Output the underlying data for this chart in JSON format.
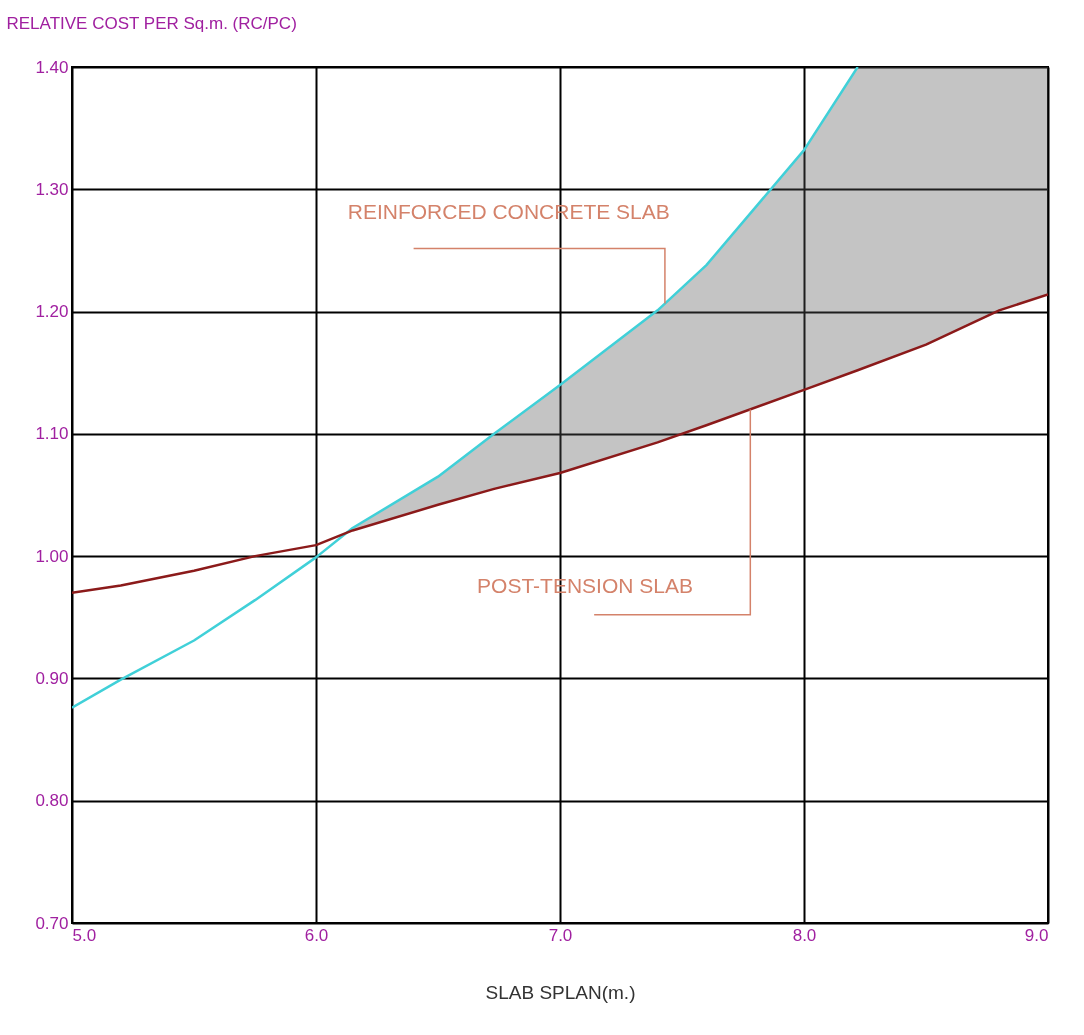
{
  "chart_data": {
    "type": "line",
    "xlabel": "SLAB SPLAN(m.)",
    "ylabel": "RELATIVE COST PER Sq.m. (RC/PC)",
    "x": [
      5.0,
      5.2,
      5.5,
      5.75,
      6.0,
      6.15,
      6.5,
      6.73,
      7.0,
      7.4,
      7.6,
      8.0,
      8.22,
      8.5,
      8.8,
      9.0
    ],
    "series": [
      {
        "color": "#40d0d8",
        "values": [
          0.876,
          0.899,
          0.931,
          0.964,
          0.999,
          1.023,
          1.065,
          1.1,
          1.14,
          1.201,
          1.238,
          1.332,
          1.4,
          null,
          null,
          null
        ],
        "lower": [
          null,
          null,
          null,
          null,
          null,
          1.021,
          1.042,
          1.055,
          1.068,
          1.093,
          1.107,
          1.136,
          1.152,
          1.173,
          1.201,
          1.214
        ],
        "upper": [
          null,
          null,
          null,
          null,
          null,
          1.023,
          1.065,
          1.1,
          1.14,
          1.201,
          1.238,
          1.332,
          1.4,
          1.4,
          1.4,
          1.4
        ]
      },
      {
        "color": "#8b1a1a",
        "values": [
          0.97,
          0.976,
          0.988,
          1.0,
          1.009,
          1.021,
          1.042,
          1.055,
          1.068,
          1.093,
          1.107,
          1.136,
          1.152,
          1.173,
          1.201,
          1.214
        ]
      }
    ],
    "xlim": [
      5.0,
      9.0
    ],
    "xticks": [
      {
        "value": 5,
        "label": "5.0"
      },
      {
        "value": 6,
        "label": "6.0"
      },
      {
        "value": 7,
        "label": "7.0"
      },
      {
        "value": 8,
        "label": "8.0"
      },
      {
        "value": 9,
        "label": "9.0"
      }
    ],
    "ylim": [
      0.7,
      1.4
    ],
    "yticks": [
      {
        "value": 0.7,
        "label": "0.70"
      },
      {
        "value": 0.8,
        "label": "0.80"
      },
      {
        "value": 0.9,
        "label": "0.90"
      },
      {
        "value": 1.0,
        "label": "1.00"
      },
      {
        "value": 1.1,
        "label": "1.10"
      },
      {
        "value": 1.2,
        "label": "1.20"
      },
      {
        "value": 1.3,
        "label": "1.30"
      },
      {
        "value": 1.4,
        "label": "1.40"
      }
    ],
    "annotations": [
      {
        "text": "REINFORCED CONCRETE SLAB",
        "x": 7.43,
        "y": 1.2066
      },
      {
        "text": "POST-TENSION SLAB",
        "x": 7.78,
        "y": 1.12
      }
    ],
    "grid": true,
    "marker": "none",
    "line_style": "solid"
  }
}
